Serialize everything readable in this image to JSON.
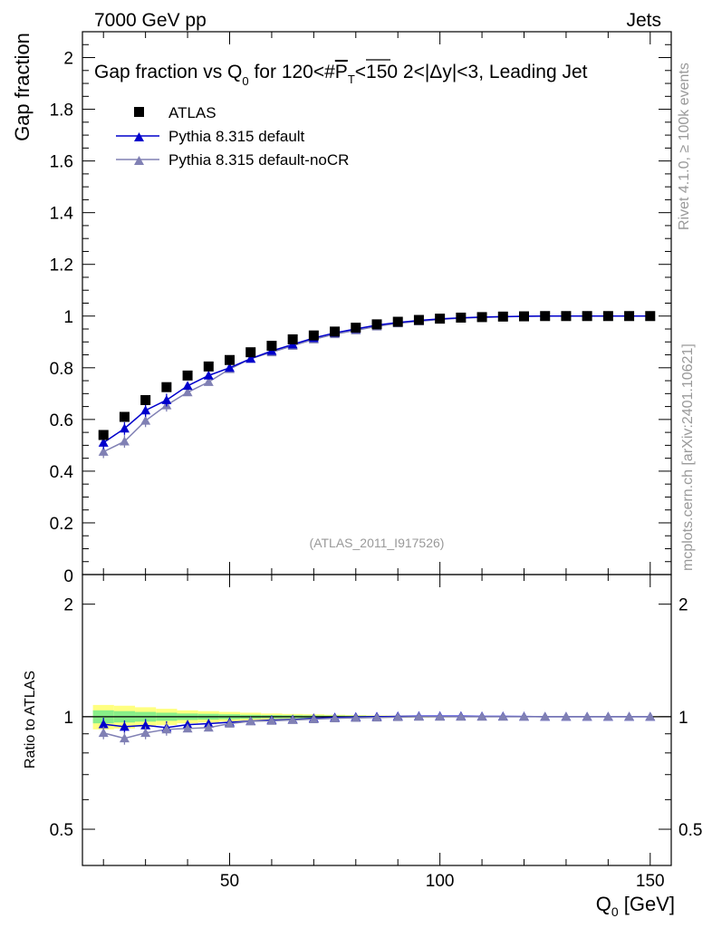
{
  "header": {
    "left": "7000 GeV pp",
    "right": "Jets",
    "side_top": "Rivet 4.1.0, ≥ 100k events",
    "side_bottom": "mcplots.cern.ch [arXiv:2401.10621]",
    "analysis_id": "(ATLAS_2011_I917526)"
  },
  "colors": {
    "data": "#000000",
    "default": "#0000cc",
    "noCR": "#8080b4",
    "band_inner": "#88ee88",
    "band_outer": "#ffff80"
  },
  "chart_data": [
    {
      "type": "scatter",
      "title": "Gap fraction vs Q0 for 120<#PT<150  2<|Δy|<3, Leading Jet",
      "title_parts": {
        "pre": "Gap fraction vs Q",
        "sub0": "0",
        "mid": " for 120<#",
        "p": "P",
        "sub1": "T",
        "post": "<150  2<|Δy|<3, Leading Jet"
      },
      "ylabel": "Gap fraction",
      "xlim": [
        15,
        155
      ],
      "ylim": [
        0,
        2.1
      ],
      "y_ticks": [
        "0.2",
        "0.4",
        "0.6",
        "0.8",
        "1",
        "1.2",
        "1.4",
        "1.6",
        "1.8",
        "2"
      ],
      "y_bottom_label": "0",
      "x": [
        20,
        25,
        30,
        35,
        40,
        45,
        50,
        55,
        60,
        65,
        70,
        75,
        80,
        85,
        90,
        95,
        100,
        105,
        110,
        115,
        120,
        125,
        130,
        135,
        140,
        145,
        150
      ],
      "legend": [
        "ATLAS",
        "Pythia 8.315 default",
        "Pythia 8.315 default-noCR"
      ],
      "series": [
        {
          "name": "ATLAS",
          "marker": "square",
          "values": [
            0.54,
            0.61,
            0.675,
            0.725,
            0.77,
            0.805,
            0.83,
            0.86,
            0.885,
            0.91,
            0.925,
            0.94,
            0.955,
            0.968,
            0.978,
            0.985,
            0.99,
            0.994,
            0.996,
            0.998,
            0.999,
            1.0,
            1.0,
            1.0,
            1.0,
            1.0,
            1.0
          ]
        },
        {
          "name": "Pythia 8.315 default",
          "marker": "triangle",
          "values": [
            0.51,
            0.565,
            0.635,
            0.675,
            0.73,
            0.77,
            0.8,
            0.835,
            0.865,
            0.89,
            0.915,
            0.935,
            0.95,
            0.965,
            0.975,
            0.983,
            0.989,
            0.993,
            0.996,
            0.998,
            0.999,
            1.0,
            1.0,
            1.0,
            1.0,
            1.0,
            1.0
          ]
        },
        {
          "name": "Pythia 8.315 default-noCR",
          "marker": "triangle",
          "values": [
            0.475,
            0.515,
            0.595,
            0.655,
            0.705,
            0.745,
            0.795,
            0.835,
            0.86,
            0.885,
            0.91,
            0.93,
            0.945,
            0.96,
            0.972,
            0.98,
            0.987,
            0.992,
            0.995,
            0.997,
            0.999,
            1.0,
            1.0,
            1.0,
            1.0,
            1.0,
            1.0
          ]
        }
      ]
    },
    {
      "type": "scatter",
      "ylabel": "Ratio to ATLAS",
      "xlabel": "Q0 [GeV]",
      "xlabel_parts": {
        "pre": "Q",
        "sub": "0",
        "post": " [GeV]"
      },
      "xlim": [
        15,
        155
      ],
      "ylim": [
        0.4,
        2.4
      ],
      "y_scale": "log",
      "y_tick_labels": [
        "0.5",
        "1",
        "2"
      ],
      "y_tick_values": [
        0.5,
        1,
        2
      ],
      "x_tick_labels": [
        "50",
        "100",
        "150"
      ],
      "x_tick_values": [
        50,
        100,
        150
      ],
      "band_inner": [
        0.04,
        0.035,
        0.03,
        0.025,
        0.02,
        0.018,
        0.015,
        0.012,
        0.01,
        0.009,
        0.008,
        0.007,
        0.006,
        0.005,
        0.004,
        0.004,
        0.003,
        0.003,
        0.002,
        0.002,
        0.002,
        0.002,
        0.002,
        0.002,
        0.002,
        0.002,
        0.002
      ],
      "band_outer": [
        0.075,
        0.07,
        0.06,
        0.05,
        0.04,
        0.035,
        0.03,
        0.025,
        0.02,
        0.017,
        0.015,
        0.012,
        0.01,
        0.008,
        0.007,
        0.006,
        0.005,
        0.004,
        0.004,
        0.003,
        0.003,
        0.003,
        0.003,
        0.003,
        0.003,
        0.003,
        0.003
      ],
      "series": [
        {
          "name": "Pythia 8.315 default",
          "values": [
            0.955,
            0.94,
            0.948,
            0.935,
            0.952,
            0.958,
            0.966,
            0.974,
            0.98,
            0.983,
            0.99,
            0.995,
            0.998,
            1.0,
            1.002,
            1.003,
            1.003,
            1.003,
            1.002,
            1.002,
            1.001,
            1.0,
            1.0,
            1.0,
            1.0,
            1.0,
            1.0
          ]
        },
        {
          "name": "Pythia 8.315 default-noCR",
          "values": [
            0.905,
            0.875,
            0.905,
            0.925,
            0.93,
            0.935,
            0.958,
            0.972,
            0.975,
            0.98,
            0.985,
            0.99,
            0.993,
            0.995,
            0.998,
            1.0,
            1.0,
            1.0,
            1.0,
            1.0,
            1.0,
            1.0,
            1.0,
            1.0,
            1.0,
            1.0,
            1.0
          ]
        }
      ]
    }
  ]
}
